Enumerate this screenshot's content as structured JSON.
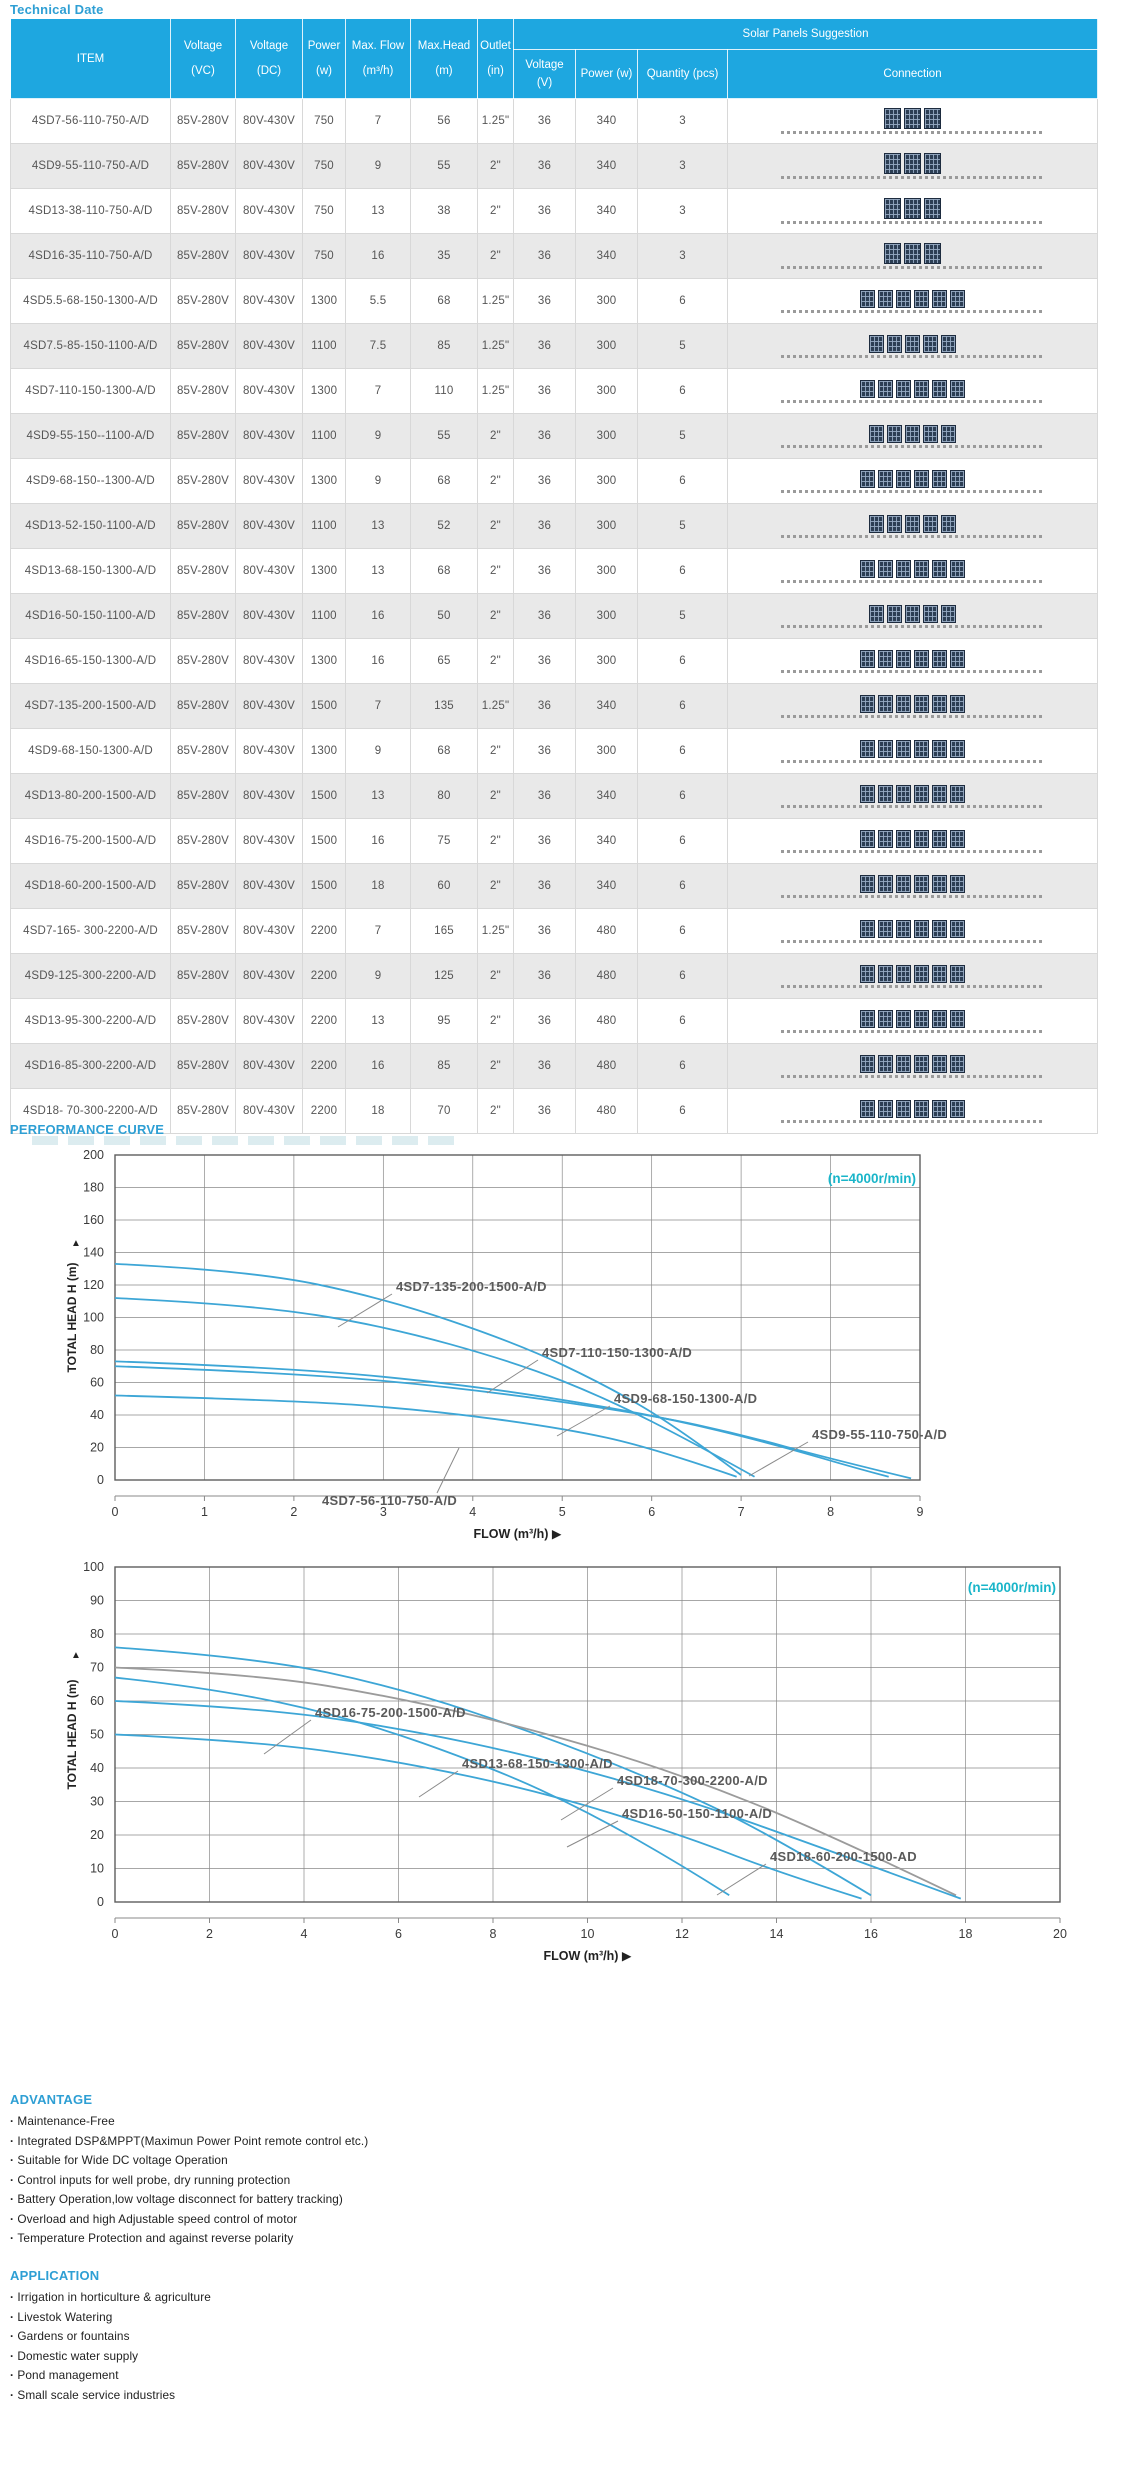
{
  "page": {
    "title": "Technical Date"
  },
  "table": {
    "columns": [
      {
        "label": "ITEM",
        "sub": ""
      },
      {
        "label": "Voltage",
        "sub": "(VC)"
      },
      {
        "label": "Voltage",
        "sub": "(DC)"
      },
      {
        "label": "Power",
        "sub": "(w)"
      },
      {
        "label": "Max. Flow",
        "sub": "(m³/h)"
      },
      {
        "label": "Max.Head",
        "sub": "(m)"
      },
      {
        "label": "Outlet",
        "sub": "(in)"
      }
    ],
    "solar_group": "Solar Panels Suggestion",
    "solar_columns": [
      {
        "label": "Voltage",
        "sub": "(V)"
      },
      {
        "label": "Power (w)",
        "sub": ""
      },
      {
        "label": "Quantity (pcs)",
        "sub": ""
      },
      {
        "label": "Connection",
        "sub": ""
      }
    ],
    "rows": [
      [
        "4SD7-56-110-750-A/D",
        "85V-280V",
        "80V-430V",
        "750",
        "7",
        "56",
        "1.25\"",
        "36",
        "340",
        "3"
      ],
      [
        "4SD9-55-110-750-A/D",
        "85V-280V",
        "80V-430V",
        "750",
        "9",
        "55",
        "2\"",
        "36",
        "340",
        "3"
      ],
      [
        "4SD13-38-110-750-A/D",
        "85V-280V",
        "80V-430V",
        "750",
        "13",
        "38",
        "2\"",
        "36",
        "340",
        "3"
      ],
      [
        "4SD16-35-110-750-A/D",
        "85V-280V",
        "80V-430V",
        "750",
        "16",
        "35",
        "2\"",
        "36",
        "340",
        "3"
      ],
      [
        "4SD5.5-68-150-1300-A/D",
        "85V-280V",
        "80V-430V",
        "1300",
        "5.5",
        "68",
        "1.25\"",
        "36",
        "300",
        "6"
      ],
      [
        "4SD7.5-85-150-1100-A/D",
        "85V-280V",
        "80V-430V",
        "1100",
        "7.5",
        "85",
        "1.25\"",
        "36",
        "300",
        "5"
      ],
      [
        "4SD7-110-150-1300-A/D",
        "85V-280V",
        "80V-430V",
        "1300",
        "7",
        "110",
        "1.25\"",
        "36",
        "300",
        "6"
      ],
      [
        "4SD9-55-150--1100-A/D",
        "85V-280V",
        "80V-430V",
        "1100",
        "9",
        "55",
        "2\"",
        "36",
        "300",
        "5"
      ],
      [
        "4SD9-68-150--1300-A/D",
        "85V-280V",
        "80V-430V",
        "1300",
        "9",
        "68",
        "2\"",
        "36",
        "300",
        "6"
      ],
      [
        "4SD13-52-150-1100-A/D",
        "85V-280V",
        "80V-430V",
        "1100",
        "13",
        "52",
        "2\"",
        "36",
        "300",
        "5"
      ],
      [
        "4SD13-68-150-1300-A/D",
        "85V-280V",
        "80V-430V",
        "1300",
        "13",
        "68",
        "2\"",
        "36",
        "300",
        "6"
      ],
      [
        "4SD16-50-150-1100-A/D",
        "85V-280V",
        "80V-430V",
        "1100",
        "16",
        "50",
        "2\"",
        "36",
        "300",
        "5"
      ],
      [
        "4SD16-65-150-1300-A/D",
        "85V-280V",
        "80V-430V",
        "1300",
        "16",
        "65",
        "2\"",
        "36",
        "300",
        "6"
      ],
      [
        "4SD7-135-200-1500-A/D",
        "85V-280V",
        "80V-430V",
        "1500",
        "7",
        "135",
        "1.25\"",
        "36",
        "340",
        "6"
      ],
      [
        "4SD9-68-150-1300-A/D",
        "85V-280V",
        "80V-430V",
        "1300",
        "9",
        "68",
        "2\"",
        "36",
        "300",
        "6"
      ],
      [
        "4SD13-80-200-1500-A/D",
        "85V-280V",
        "80V-430V",
        "1500",
        "13",
        "80",
        "2\"",
        "36",
        "340",
        "6"
      ],
      [
        "4SD16-75-200-1500-A/D",
        "85V-280V",
        "80V-430V",
        "1500",
        "16",
        "75",
        "2\"",
        "36",
        "340",
        "6"
      ],
      [
        "4SD18-60-200-1500-A/D",
        "85V-280V",
        "80V-430V",
        "1500",
        "18",
        "60",
        "2\"",
        "36",
        "340",
        "6"
      ],
      [
        "4SD7-165- 300-2200-A/D",
        "85V-280V",
        "80V-430V",
        "2200",
        "7",
        "165",
        "1.25\"",
        "36",
        "480",
        "6"
      ],
      [
        "4SD9-125-300-2200-A/D",
        "85V-280V",
        "80V-430V",
        "2200",
        "9",
        "125",
        "2\"",
        "36",
        "480",
        "6"
      ],
      [
        "4SD13-95-300-2200-A/D",
        "85V-280V",
        "80V-430V",
        "2200",
        "13",
        "95",
        "2\"",
        "36",
        "480",
        "6"
      ],
      [
        "4SD16-85-300-2200-A/D",
        "85V-280V",
        "80V-430V",
        "2200",
        "16",
        "85",
        "2\"",
        "36",
        "480",
        "6"
      ],
      [
        "4SD18- 70-300-2200-A/D",
        "85V-280V",
        "80V-430V",
        "2200",
        "18",
        "70",
        "2\"",
        "36",
        "480",
        "6"
      ]
    ]
  },
  "performance": {
    "heading": "PERFORMANCE CURVE"
  },
  "chart_data": [
    {
      "type": "line",
      "rpm_label": "(n=4000r/min)",
      "xlabel": "FLOW (m³/h) ▶",
      "ylabel": "TOTAL HEAD H (m)",
      "ylabel_arrow": "▲",
      "xlim": [
        0,
        9
      ],
      "ylim": [
        0,
        200
      ],
      "xtick_step": 1,
      "ytick_step": 20,
      "grid": true,
      "accent_color": "#19b5c9",
      "series": [
        {
          "name": "4SD7-135-200-1500-A/D",
          "color": "#3da6d6",
          "points": [
            [
              0,
              133
            ],
            [
              1.5,
              129
            ],
            [
              3,
              112
            ],
            [
              4.5,
              84
            ],
            [
              5.5,
              58
            ],
            [
              6.3,
              32
            ],
            [
              7,
              3
            ]
          ]
        },
        {
          "name": "4SD7-110-150-1300-A/D",
          "color": "#3da6d6",
          "points": [
            [
              0,
              112
            ],
            [
              1.5,
              108
            ],
            [
              3,
              95
            ],
            [
              4.5,
              72
            ],
            [
              5.5,
              50
            ],
            [
              6.5,
              22
            ],
            [
              7.15,
              2
            ]
          ]
        },
        {
          "name": "4SD9-68-150-1300-A/D",
          "color": "#3da6d6",
          "points": [
            [
              0,
              73
            ],
            [
              2,
              69
            ],
            [
              4,
              58
            ],
            [
              5.5,
              45
            ],
            [
              6.5,
              34
            ],
            [
              7.5,
              20
            ],
            [
              8.3,
              7
            ],
            [
              8.65,
              2
            ]
          ]
        },
        {
          "name": "4SD9-55-110-750-A/D",
          "color": "#3da6d6",
          "points": [
            [
              0,
              70
            ],
            [
              2,
              66
            ],
            [
              4,
              56
            ],
            [
              6,
              40
            ],
            [
              7,
              28
            ],
            [
              8,
              13
            ],
            [
              8.9,
              1
            ]
          ]
        },
        {
          "name": "4SD7-56-110-750-A/D",
          "color": "#3da6d6",
          "points": [
            [
              0,
              52
            ],
            [
              2,
              49
            ],
            [
              3.5,
              43
            ],
            [
              5,
              32
            ],
            [
              6,
              20
            ],
            [
              6.95,
              2
            ]
          ]
        }
      ]
    },
    {
      "type": "line",
      "rpm_label": "(n=4000r/min)",
      "xlabel": "FLOW (m³/h) ▶",
      "ylabel": "TOTAL HEAD H (m)",
      "ylabel_arrow": "▲",
      "xlim": [
        0,
        20
      ],
      "ylim": [
        0,
        100
      ],
      "xtick_step": 2,
      "ytick_step": 10,
      "grid": true,
      "accent_color": "#19b5c9",
      "series": [
        {
          "name": "4SD16-75-200-1500-A/D",
          "color": "#3da6d6",
          "points": [
            [
              0,
              76
            ],
            [
              3,
              73
            ],
            [
              6,
              64
            ],
            [
              9,
              50
            ],
            [
              12,
              33
            ],
            [
              14,
              19
            ],
            [
              16,
              2
            ]
          ]
        },
        {
          "name": "4SD18-70-300-2200-A/D",
          "color": "#9b9b9b",
          "points": [
            [
              0,
              70
            ],
            [
              3,
              68
            ],
            [
              6,
              61
            ],
            [
              9,
              51
            ],
            [
              12,
              38
            ],
            [
              15,
              21
            ],
            [
              17.8,
              2
            ]
          ]
        },
        {
          "name": "4SD13-68-150-1300-A/D",
          "color": "#3da6d6",
          "points": [
            [
              0,
              67
            ],
            [
              2,
              64
            ],
            [
              5,
              55
            ],
            [
              8,
              40
            ],
            [
              10,
              27
            ],
            [
              12,
              11
            ],
            [
              13,
              2
            ]
          ]
        },
        {
          "name": "4SD18-60-200-1500-AD",
          "color": "#3da6d6",
          "points": [
            [
              0,
              60
            ],
            [
              3,
              58
            ],
            [
              6,
              52
            ],
            [
              9,
              43
            ],
            [
              12,
              31
            ],
            [
              15,
              16
            ],
            [
              17.9,
              1
            ]
          ]
        },
        {
          "name": "4SD16-50-150-1100-A/D",
          "color": "#3da6d6",
          "points": [
            [
              0,
              50
            ],
            [
              3,
              48
            ],
            [
              6,
              42
            ],
            [
              9,
              33
            ],
            [
              12,
              20
            ],
            [
              14,
              9
            ],
            [
              15.8,
              1
            ]
          ]
        }
      ]
    }
  ],
  "advantage": {
    "heading": "ADVANTAGE",
    "items": [
      "Maintenance-Free",
      "Integrated DSP&MPPT(Maximun Power Point remote control etc.)",
      "Suitable for Wide DC voltage Operation",
      "Control inputs for well probe, dry running protection",
      "Battery Operation,low voltage disconnect for battery tracking)",
      "Overload and high Adjustable speed control of motor",
      "Temperature Protection and against reverse polarity"
    ]
  },
  "application": {
    "heading": "APPLICATION",
    "items": [
      "Irrigation in horticulture & agriculture",
      "Livestok Watering",
      "Gardens or fountains",
      "Domestic water supply",
      "Pond management",
      "Small scale service industries"
    ]
  }
}
